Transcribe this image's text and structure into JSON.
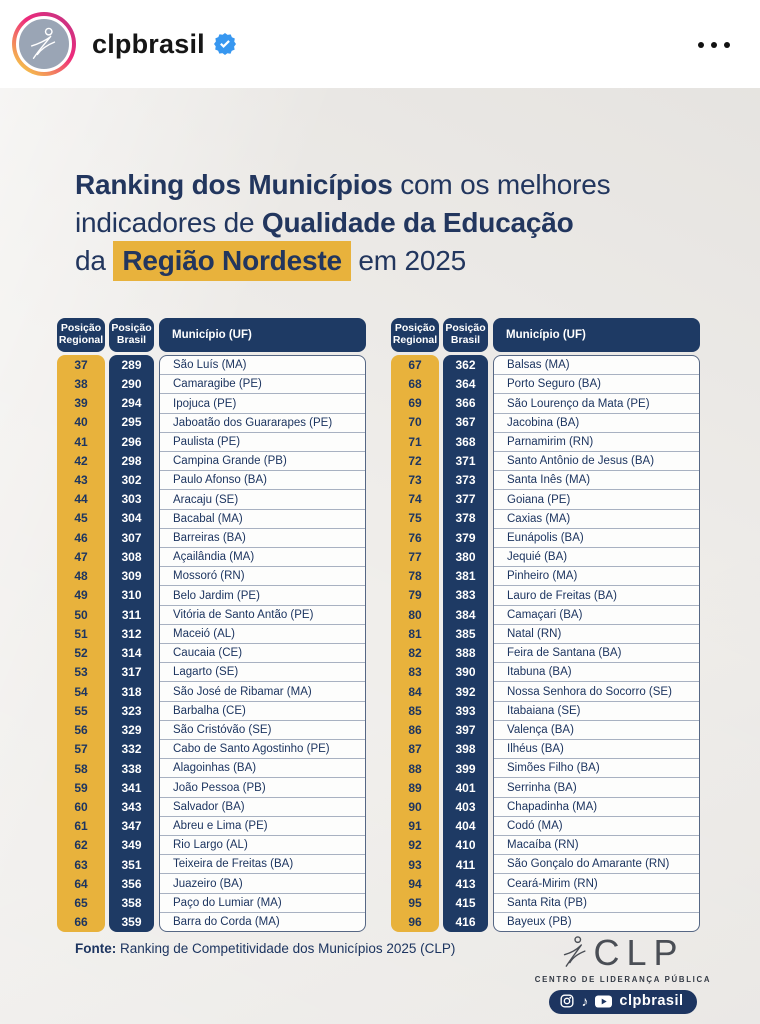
{
  "ig_header": {
    "username": "clpbrasil"
  },
  "icons": {
    "tiktok_glyph": "♪"
  },
  "title": {
    "line1_bold": "Ranking dos Municípios",
    "line1_normal": " com os melhores",
    "line2_normal": "indicadores de ",
    "line2_bold": "Qualidade da Educação",
    "line3_normal_a": "da ",
    "line3_highlight": "Região Nordeste",
    "line3_normal_b": " em 2025"
  },
  "tables": [
    {
      "headers": [
        "Posição Regional",
        "Posição Brasil",
        "Município (UF)"
      ],
      "rows": [
        [
          37,
          289,
          "São Luís (MA)"
        ],
        [
          38,
          290,
          "Camaragibe (PE)"
        ],
        [
          39,
          294,
          "Ipojuca (PE)"
        ],
        [
          40,
          295,
          "Jaboatão dos Guararapes (PE)"
        ],
        [
          41,
          296,
          "Paulista (PE)"
        ],
        [
          42,
          298,
          "Campina Grande (PB)"
        ],
        [
          43,
          302,
          "Paulo Afonso (BA)"
        ],
        [
          44,
          303,
          "Aracaju (SE)"
        ],
        [
          45,
          304,
          "Bacabal (MA)"
        ],
        [
          46,
          307,
          "Barreiras (BA)"
        ],
        [
          47,
          308,
          "Açailândia (MA)"
        ],
        [
          48,
          309,
          "Mossoró (RN)"
        ],
        [
          49,
          310,
          "Belo Jardim (PE)"
        ],
        [
          50,
          311,
          "Vitória de Santo Antão (PE)"
        ],
        [
          51,
          312,
          "Maceió (AL)"
        ],
        [
          52,
          314,
          "Caucaia (CE)"
        ],
        [
          53,
          317,
          "Lagarto (SE)"
        ],
        [
          54,
          318,
          "São José de Ribamar (MA)"
        ],
        [
          55,
          323,
          "Barbalha (CE)"
        ],
        [
          56,
          329,
          "São Cristóvão (SE)"
        ],
        [
          57,
          332,
          "Cabo de Santo Agostinho (PE)"
        ],
        [
          58,
          338,
          "Alagoinhas (BA)"
        ],
        [
          59,
          341,
          "João Pessoa (PB)"
        ],
        [
          60,
          343,
          "Salvador (BA)"
        ],
        [
          61,
          347,
          "Abreu e Lima (PE)"
        ],
        [
          62,
          349,
          "Rio Largo (AL)"
        ],
        [
          63,
          351,
          "Teixeira de Freitas (BA)"
        ],
        [
          64,
          356,
          "Juazeiro (BA)"
        ],
        [
          65,
          358,
          "Paço do Lumiar (MA)"
        ],
        [
          66,
          359,
          "Barra do Corda (MA)"
        ]
      ]
    },
    {
      "headers": [
        "Posição Regional",
        "Posição Brasil",
        "Município (UF)"
      ],
      "rows": [
        [
          67,
          362,
          "Balsas (MA)"
        ],
        [
          68,
          364,
          "Porto Seguro (BA)"
        ],
        [
          69,
          366,
          "São Lourenço da Mata (PE)"
        ],
        [
          70,
          367,
          "Jacobina (BA)"
        ],
        [
          71,
          368,
          "Parnamirim (RN)"
        ],
        [
          72,
          371,
          "Santo Antônio de Jesus (BA)"
        ],
        [
          73,
          373,
          "Santa Inês (MA)"
        ],
        [
          74,
          377,
          "Goiana (PE)"
        ],
        [
          75,
          378,
          "Caxias (MA)"
        ],
        [
          76,
          379,
          "Eunápolis (BA)"
        ],
        [
          77,
          380,
          "Jequié (BA)"
        ],
        [
          78,
          381,
          "Pinheiro (MA)"
        ],
        [
          79,
          383,
          "Lauro de Freitas (BA)"
        ],
        [
          80,
          384,
          "Camaçari (BA)"
        ],
        [
          81,
          385,
          "Natal (RN)"
        ],
        [
          82,
          388,
          "Feira de Santana (BA)"
        ],
        [
          83,
          390,
          "Itabuna (BA)"
        ],
        [
          84,
          392,
          "Nossa Senhora do Socorro (SE)"
        ],
        [
          85,
          393,
          "Itabaiana (SE)"
        ],
        [
          86,
          397,
          "Valença (BA)"
        ],
        [
          87,
          398,
          "Ilhéus (BA)"
        ],
        [
          88,
          399,
          "Simões Filho (BA)"
        ],
        [
          89,
          401,
          "Serrinha (BA)"
        ],
        [
          90,
          403,
          "Chapadinha (MA)"
        ],
        [
          91,
          404,
          "Codó (MA)"
        ],
        [
          92,
          410,
          "Macaíba (RN)"
        ],
        [
          93,
          411,
          "São Gonçalo do Amarante (RN)"
        ],
        [
          94,
          413,
          "Ceará-Mirim (RN)"
        ],
        [
          95,
          415,
          "Santa Rita (PB)"
        ],
        [
          96,
          416,
          "Bayeux (PB)"
        ]
      ]
    }
  ],
  "footer": {
    "source_label": "Fonte:",
    "source_text": " Ranking de Competitividade dos Municípios 2025 (CLP)"
  },
  "brand": {
    "name": "CLP",
    "tagline": "CENTRO DE LIDERANÇA PÚBLICA",
    "social_handle": "clpbrasil"
  },
  "colors": {
    "navy": "#1e3a64",
    "yellow": "#e8b23c",
    "paper": "#efedea",
    "verified_blue": "#3797f0"
  }
}
